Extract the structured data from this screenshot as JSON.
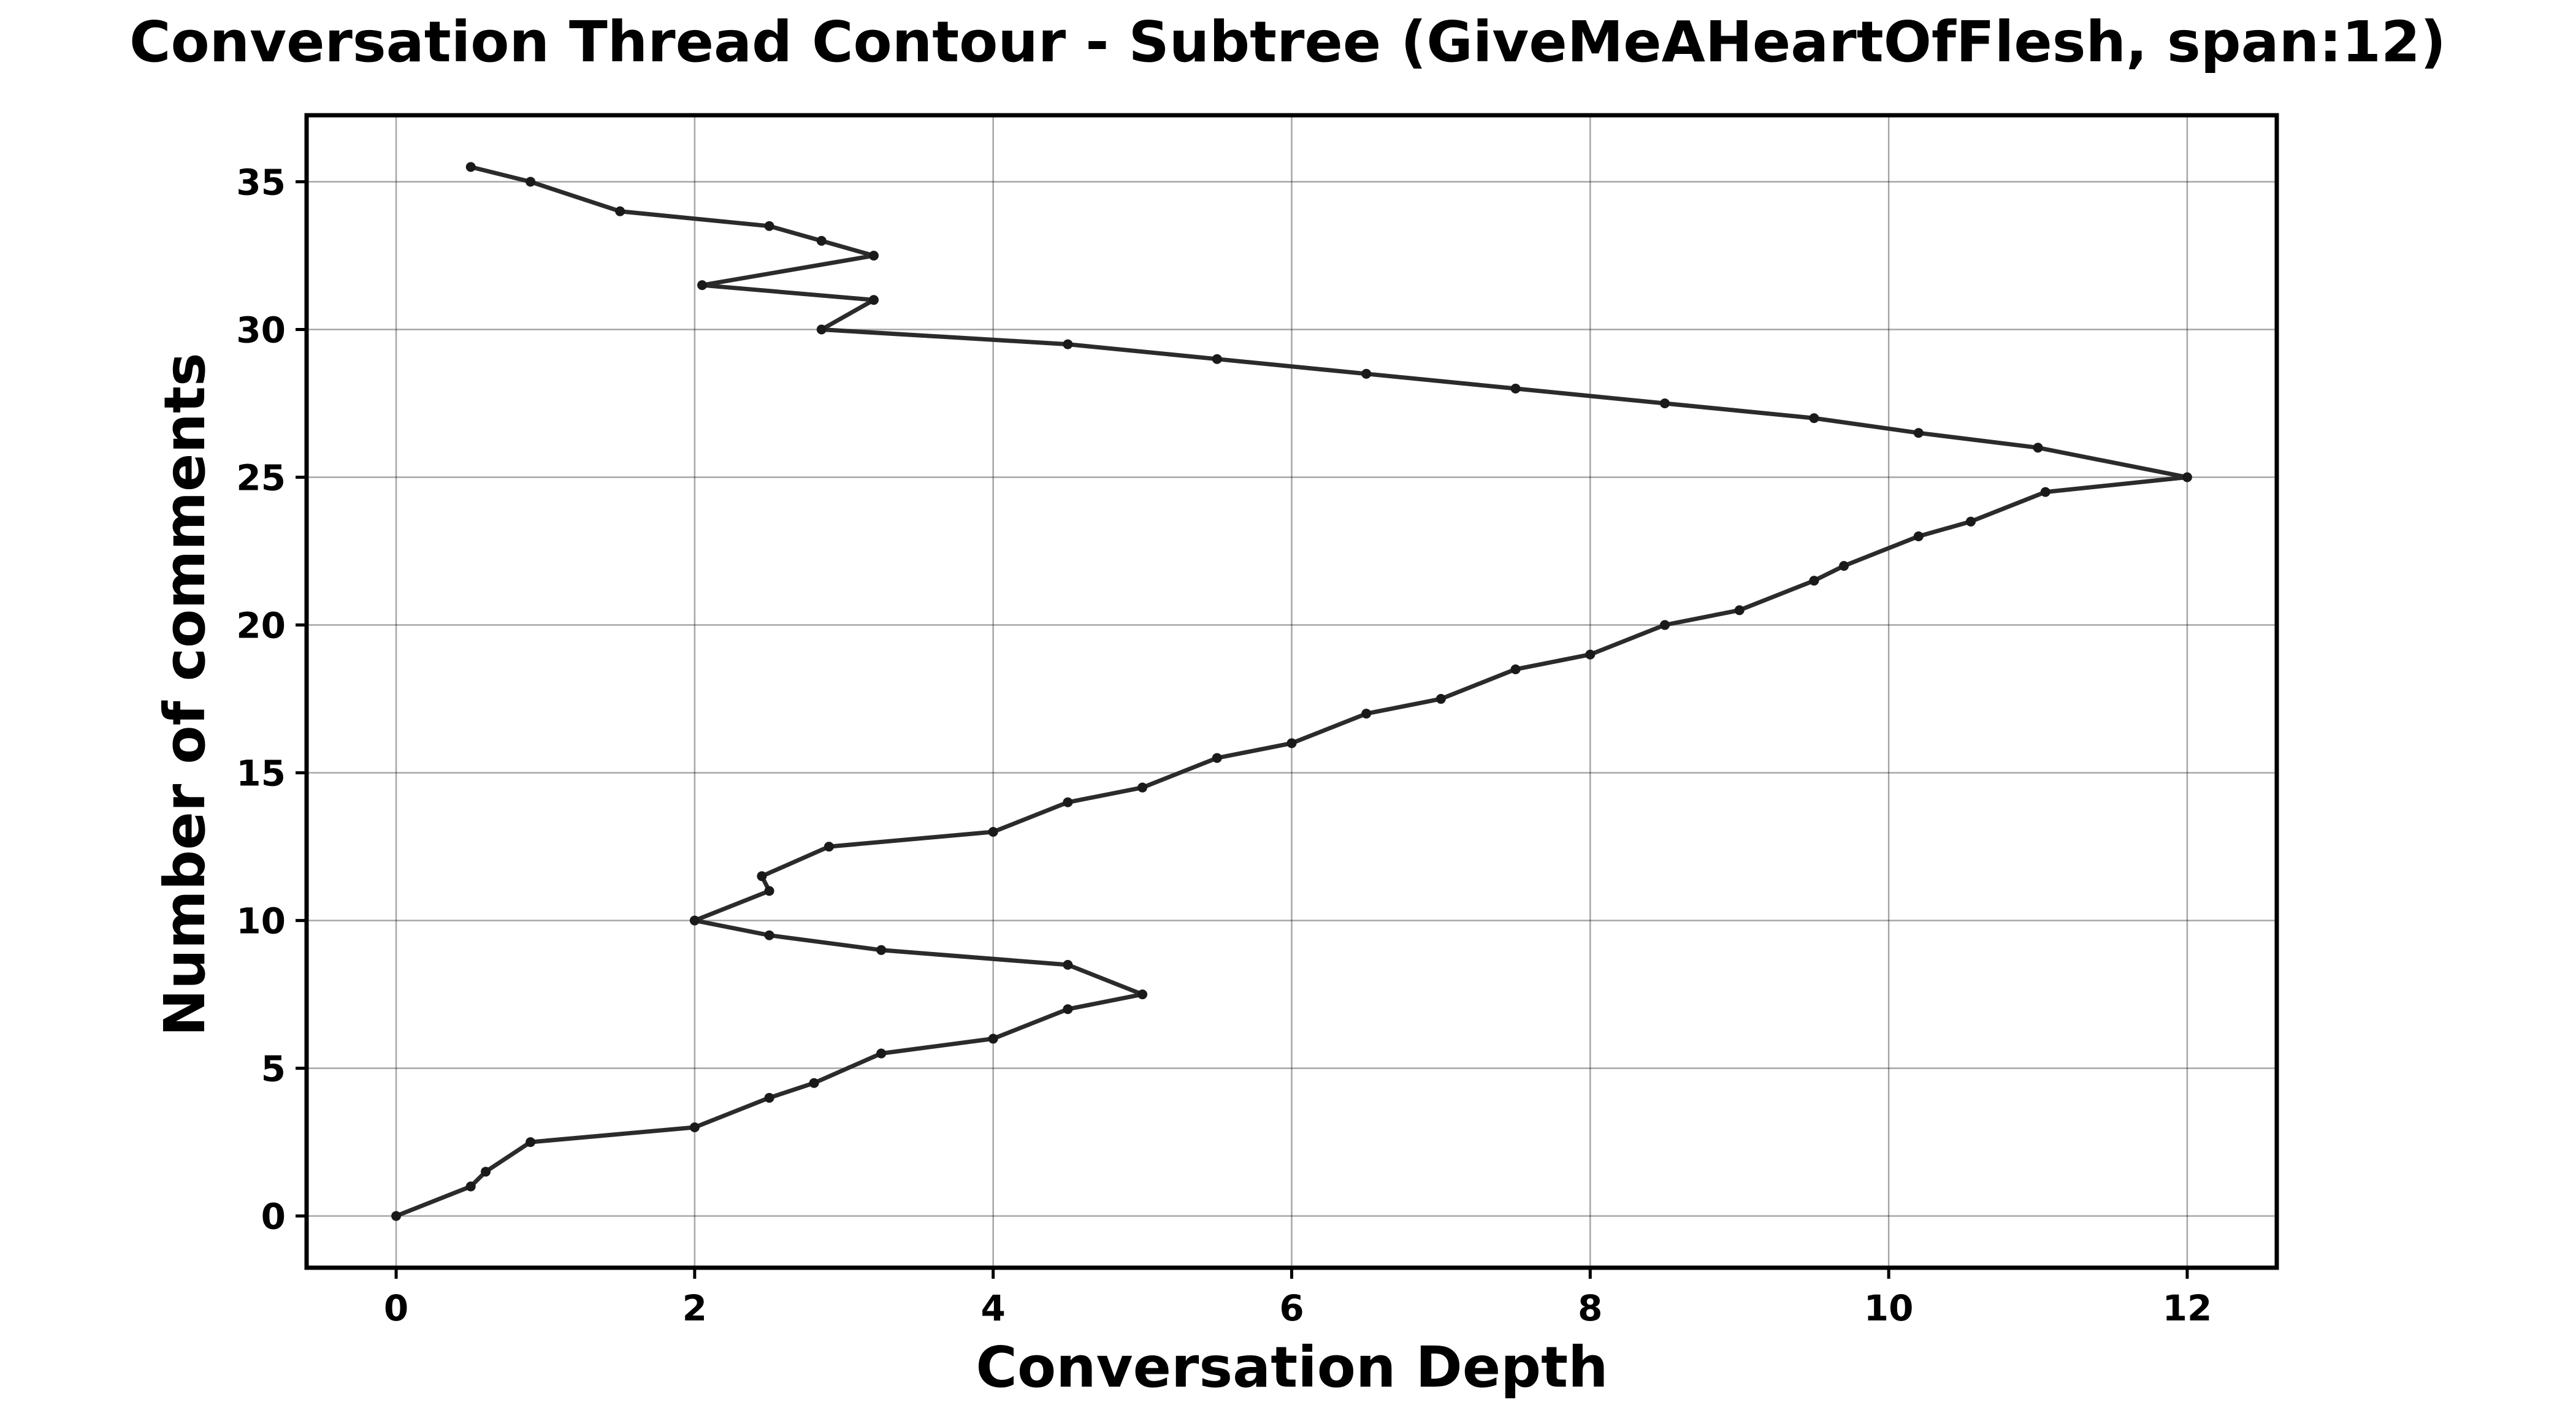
{
  "chart_data": {
    "type": "line",
    "title": "Conversation Thread Contour  - Subtree (GiveMeAHeartOfFlesh, span:12)",
    "xlabel": "Conversation Depth",
    "ylabel": "Number of comments",
    "xlim": [
      -0.6,
      12.6
    ],
    "ylim": [
      -1.75,
      37.25
    ],
    "xticks": [
      0,
      2,
      4,
      6,
      8,
      10,
      12
    ],
    "yticks": [
      0,
      5,
      10,
      15,
      20,
      25,
      30,
      35
    ],
    "grid": true,
    "line_color": "#2b2b2b",
    "series": [
      {
        "x": [
          0,
          0.5,
          0.6,
          0.9,
          2.0,
          2.5,
          2.8,
          3.25,
          4.0,
          4.5,
          5.0,
          4.5,
          3.25,
          2.5,
          2.0,
          2.5,
          2.45,
          2.9,
          4.0,
          4.5,
          5.0,
          5.5,
          6.0,
          6.5,
          7.0,
          7.5,
          8.0,
          8.5,
          9.0,
          9.5,
          9.7,
          10.2,
          10.55,
          11.05,
          12.0,
          11.0,
          10.2,
          9.5,
          8.5,
          7.5,
          6.5,
          5.5,
          4.5,
          2.85,
          3.2,
          2.05,
          3.2,
          2.85,
          2.5,
          1.5,
          0.9,
          0.5
        ],
        "y": [
          0,
          1.0,
          1.5,
          2.5,
          3.0,
          4.0,
          4.5,
          5.5,
          6.0,
          7.0,
          7.5,
          8.5,
          9.0,
          9.5,
          10.0,
          11.0,
          11.5,
          12.5,
          13.0,
          14.0,
          14.5,
          15.5,
          16.0,
          17.0,
          17.5,
          18.5,
          19.0,
          20.0,
          20.5,
          21.5,
          22.0,
          23.0,
          23.5,
          24.5,
          25.0,
          26.0,
          26.5,
          27.0,
          27.5,
          28.0,
          28.5,
          29.0,
          29.5,
          30.0,
          31.0,
          31.5,
          32.5,
          33.0,
          33.5,
          34.0,
          35.0,
          35.5
        ]
      }
    ]
  }
}
